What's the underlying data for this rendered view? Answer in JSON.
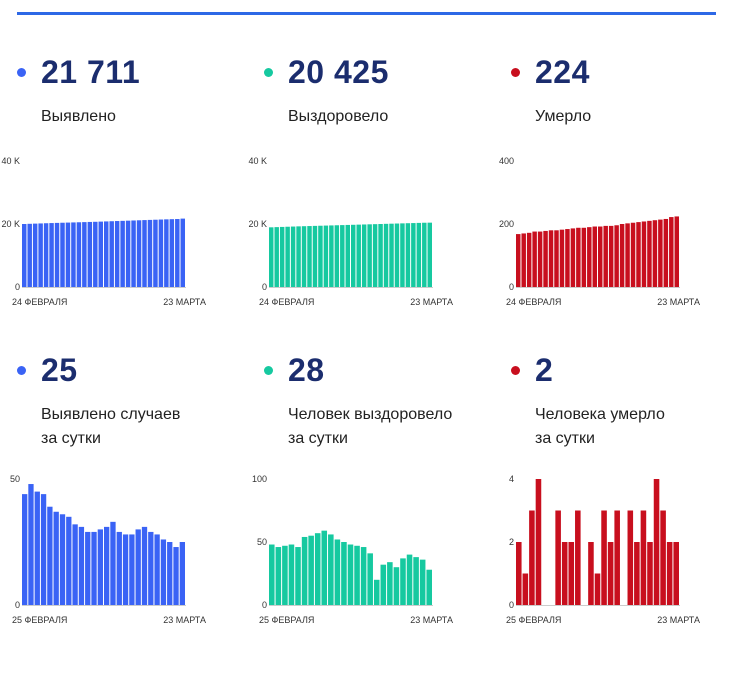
{
  "cards": [
    {
      "value": "21 711",
      "label_lines": [
        "Выявлено"
      ],
      "color": "#3a63f5",
      "chart_data": {
        "type": "bar",
        "x_start_label": "24 ФЕВРАЛЯ",
        "x_end_label": "23 МАРТА",
        "yticks": [
          0,
          20000,
          40000
        ],
        "ytick_labels": [
          "0",
          "20 K",
          "40 K"
        ],
        "ylim": [
          0,
          40000
        ],
        "values": [
          20000,
          20060,
          20120,
          20180,
          20240,
          20300,
          20350,
          20400,
          20450,
          20500,
          20550,
          20600,
          20650,
          20700,
          20760,
          20820,
          20880,
          20940,
          21000,
          21060,
          21120,
          21180,
          21240,
          21300,
          21360,
          21420,
          21480,
          21530,
          21580,
          21711
        ]
      }
    },
    {
      "value": "20 425",
      "label_lines": [
        "Выздоровело"
      ],
      "color": "#16c9a0",
      "chart_data": {
        "type": "bar",
        "x_start_label": "24 ФЕВРАЛЯ",
        "x_end_label": "23 МАРТА",
        "yticks": [
          0,
          20000,
          40000
        ],
        "ytick_labels": [
          "0",
          "20 K",
          "40 K"
        ],
        "ylim": [
          0,
          40000
        ],
        "values": [
          18950,
          19010,
          19070,
          19130,
          19190,
          19250,
          19300,
          19350,
          19400,
          19450,
          19500,
          19550,
          19600,
          19650,
          19700,
          19750,
          19800,
          19850,
          19900,
          19950,
          20000,
          20050,
          20100,
          20150,
          20200,
          20250,
          20300,
          20350,
          20400,
          20425
        ]
      }
    },
    {
      "value": "224",
      "label_lines": [
        "Умерло"
      ],
      "color": "#c80f1e",
      "chart_data": {
        "type": "bar",
        "x_start_label": "24 ФЕВРАЛЯ",
        "x_end_label": "23 МАРТА",
        "yticks": [
          0,
          200,
          400
        ],
        "ytick_labels": [
          "0",
          "200",
          "400"
        ],
        "ylim": [
          0,
          400
        ],
        "values": [
          168,
          170,
          172,
          176,
          176,
          178,
          180,
          180,
          182,
          184,
          186,
          188,
          188,
          190,
          192,
          192,
          194,
          194,
          196,
          200,
          202,
          204,
          206,
          208,
          210,
          212,
          214,
          216,
          222,
          224
        ]
      }
    },
    {
      "value": "25",
      "label_lines": [
        "Выявлено случаев",
        "за сутки"
      ],
      "color": "#3a63f5",
      "chart_data": {
        "type": "bar",
        "x_start_label": "25 ФЕВРАЛЯ",
        "x_end_label": "23 МАРТА",
        "yticks": [
          0,
          50
        ],
        "ytick_labels": [
          "0",
          "50"
        ],
        "ylim": [
          0,
          50
        ],
        "values": [
          44,
          48,
          45,
          44,
          39,
          37,
          36,
          35,
          32,
          31,
          29,
          29,
          30,
          31,
          33,
          29,
          28,
          28,
          30,
          31,
          29,
          28,
          26,
          25,
          23,
          25
        ]
      }
    },
    {
      "value": "28",
      "label_lines": [
        "Человек выздоровело",
        "за сутки"
      ],
      "color": "#16c9a0",
      "chart_data": {
        "type": "bar",
        "x_start_label": "25 ФЕВРАЛЯ",
        "x_end_label": "23 МАРТА",
        "yticks": [
          0,
          50,
          100
        ],
        "ytick_labels": [
          "0",
          "50",
          "100"
        ],
        "ylim": [
          0,
          100
        ],
        "values": [
          48,
          46,
          47,
          48,
          46,
          54,
          55,
          57,
          59,
          56,
          52,
          50,
          48,
          47,
          46,
          41,
          20,
          32,
          34,
          30,
          37,
          40,
          38,
          36,
          28
        ]
      }
    },
    {
      "value": "2",
      "label_lines": [
        "Человека умерло",
        "за сутки"
      ],
      "color": "#c80f1e",
      "chart_data": {
        "type": "bar",
        "x_start_label": "25 ФЕВРАЛЯ",
        "x_end_label": "23 МАРТА",
        "yticks": [
          0,
          2,
          4
        ],
        "ytick_labels": [
          "0",
          "2",
          "4"
        ],
        "ylim": [
          0,
          4
        ],
        "values": [
          2,
          1,
          3,
          4,
          0,
          0,
          3,
          2,
          2,
          3,
          0,
          2,
          1,
          3,
          2,
          3,
          0,
          3,
          2,
          3,
          2,
          4,
          3,
          2,
          2
        ]
      }
    }
  ]
}
